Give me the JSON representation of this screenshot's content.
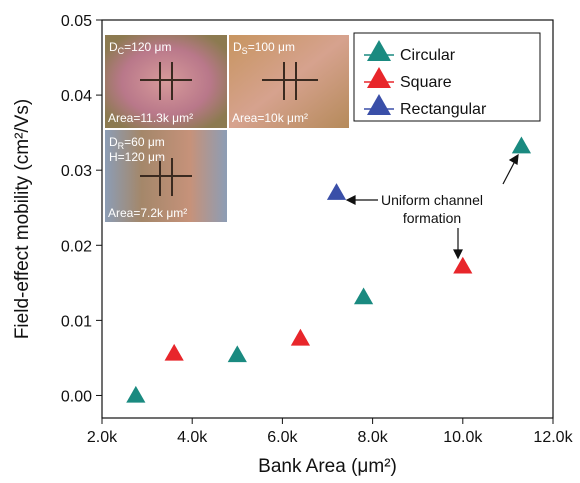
{
  "chart_data": {
    "type": "scatter",
    "x_label": "Bank Area (μm²)",
    "y_label": "Field-effect mobility (cm²/Vs)",
    "xlim": [
      2000,
      12000
    ],
    "ylim": [
      -0.003,
      0.05
    ],
    "xticks": [
      {
        "value": 2000,
        "label": "2.0k"
      },
      {
        "value": 4000,
        "label": "4.0k"
      },
      {
        "value": 6000,
        "label": "6.0k"
      },
      {
        "value": 8000,
        "label": "8.0k"
      },
      {
        "value": 10000,
        "label": "10.0k"
      },
      {
        "value": 12000,
        "label": "12.0k"
      }
    ],
    "yticks": [
      {
        "value": 0,
        "label": "0.00"
      },
      {
        "value": 0.01,
        "label": "0.01"
      },
      {
        "value": 0.02,
        "label": "0.02"
      },
      {
        "value": 0.03,
        "label": "0.03"
      },
      {
        "value": 0.04,
        "label": "0.04"
      },
      {
        "value": 0.05,
        "label": "0.05"
      }
    ],
    "legend_position": "upper right",
    "series": [
      {
        "name": "Circular",
        "color": "#1a8a80",
        "x": [
          2750,
          5000,
          7800,
          11300
        ],
        "values": [
          0.0,
          0.0054,
          0.0131,
          0.0332
        ]
      },
      {
        "name": "Square",
        "color": "#e8262b",
        "x": [
          3600,
          6400,
          10000
        ],
        "values": [
          0.0056,
          0.0076,
          0.0172
        ]
      },
      {
        "name": "Rectangular",
        "color": "#3a4fa8",
        "x": [
          7200
        ],
        "values": [
          0.027
        ]
      }
    ],
    "annotation": [
      "Uniform channel",
      "formation"
    ],
    "insets": [
      {
        "top": [
          {
            "main": "D",
            "sub": "C",
            "rest": "=120 μm"
          }
        ],
        "bottom": "Area=11.3k μm²"
      },
      {
        "top": [
          {
            "main": "D",
            "sub": "S",
            "rest": "=100 μm"
          }
        ],
        "bottom": "Area=10k μm²"
      },
      {
        "top": [
          {
            "main": "D",
            "sub": "R",
            "rest": "=60 μm"
          },
          {
            "main": "H=120 μm",
            "sub": "",
            "rest": ""
          }
        ],
        "bottom": "Area=7.2k μm²"
      }
    ]
  }
}
